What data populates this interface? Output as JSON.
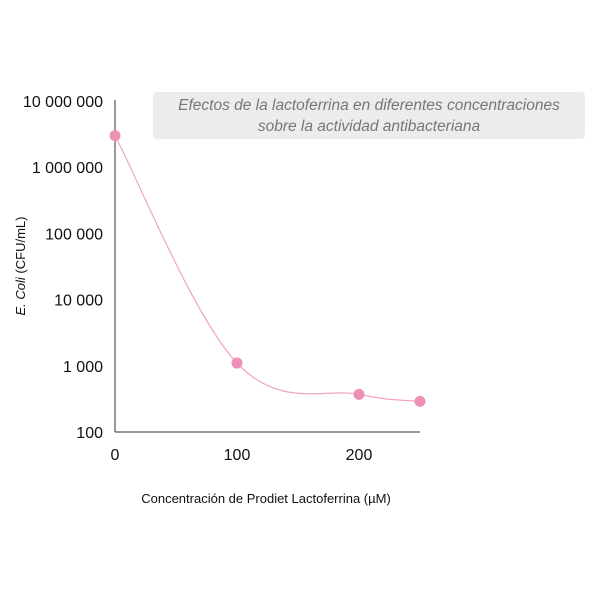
{
  "chart_data": {
    "type": "line",
    "title_lines": [
      "Efectos de la lactoferrina en diferentes concentraciones",
      "sobre la actividad antibacteriana"
    ],
    "xlabel": "Concentración de Prodiet Lactoferrina (µM)",
    "ylabel_italic": "E. Coli",
    "ylabel_rest": " (CFU/mL)",
    "y_scale": "log",
    "xlim": [
      0,
      250
    ],
    "ylim": [
      100,
      10000000
    ],
    "x_ticks": [
      0,
      100,
      200
    ],
    "x_tick_labels": [
      "0",
      "100",
      "200"
    ],
    "y_ticks": [
      100,
      1000,
      10000,
      100000,
      1000000,
      10000000
    ],
    "y_tick_labels": [
      "100",
      "1 000",
      "10 000",
      "100 000",
      "1 000 000",
      "10 000 000"
    ],
    "series": [
      {
        "x": [
          0,
          100,
          200,
          250
        ],
        "y": [
          3000000,
          1100,
          370,
          290
        ]
      }
    ],
    "colors": {
      "line": "#f2a3c2",
      "marker": "#ee8fb6",
      "axis": "#333333"
    }
  }
}
